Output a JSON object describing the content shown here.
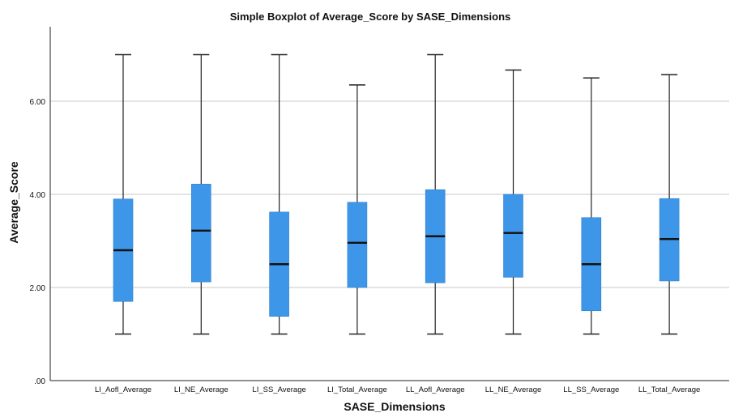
{
  "chart_data": {
    "type": "boxplot",
    "title": "Simple Boxplot of Average_Score by SASE_Dimensions",
    "xlabel": "SASE_Dimensions",
    "ylabel": "Average_Score",
    "ylim": [
      0,
      7.6
    ],
    "yticks": [
      0,
      2,
      4,
      6
    ],
    "ytick_labels": [
      ".00",
      "2.00",
      "4.00",
      "6.00"
    ],
    "grid": true,
    "box_color": "#3d96e8",
    "categories": [
      "LI_Aofl_Average",
      "LI_NE_Average",
      "LI_SS_Average",
      "LI_Total_Average",
      "LL_Aofl_Average",
      "LL_NE_Average",
      "LL_SS_Average",
      "LL_Total_Average"
    ],
    "boxes": [
      {
        "min": 1.0,
        "q1": 1.7,
        "median": 2.8,
        "q3": 3.9,
        "max": 7.0
      },
      {
        "min": 1.0,
        "q1": 2.12,
        "median": 3.22,
        "q3": 4.22,
        "max": 7.0
      },
      {
        "min": 1.0,
        "q1": 1.38,
        "median": 2.5,
        "q3": 3.62,
        "max": 7.0
      },
      {
        "min": 1.0,
        "q1": 2.0,
        "median": 2.96,
        "q3": 3.83,
        "max": 6.35
      },
      {
        "min": 1.0,
        "q1": 2.1,
        "median": 3.1,
        "q3": 4.1,
        "max": 7.0
      },
      {
        "min": 1.0,
        "q1": 2.22,
        "median": 3.17,
        "q3": 4.0,
        "max": 6.67
      },
      {
        "min": 1.0,
        "q1": 1.5,
        "median": 2.5,
        "q3": 3.5,
        "max": 6.5
      },
      {
        "min": 1.0,
        "q1": 2.14,
        "median": 3.04,
        "q3": 3.91,
        "max": 6.57
      }
    ]
  }
}
